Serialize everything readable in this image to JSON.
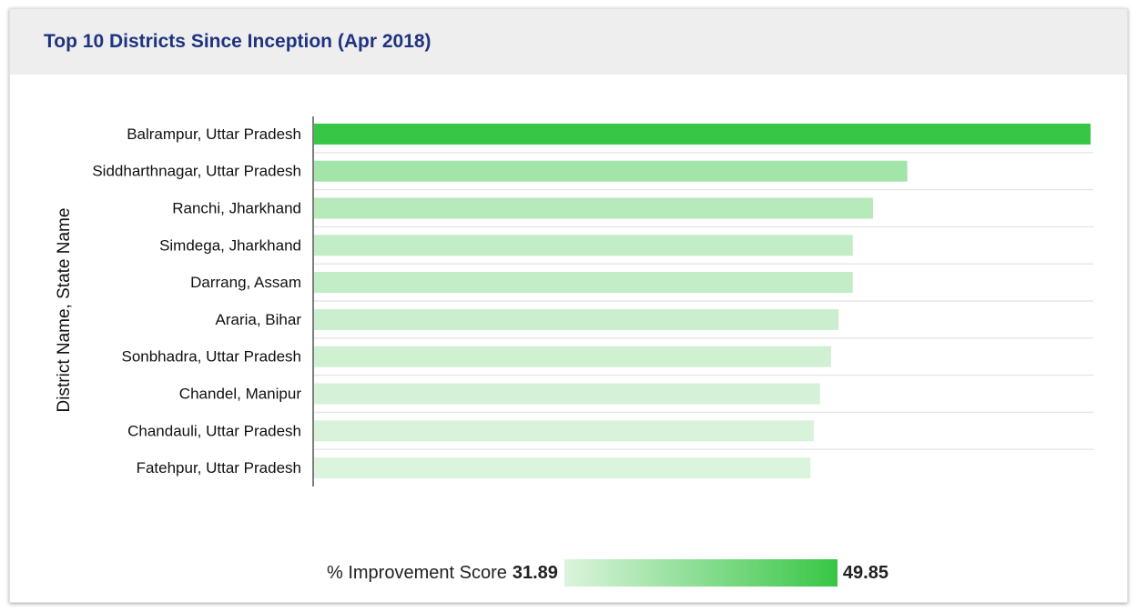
{
  "header": {
    "title": "Top 10 Districts Since Inception (Apr 2018)"
  },
  "legend": {
    "label": "% Improvement Score",
    "min_label": "31.89",
    "max_label": "49.85"
  },
  "colors": {
    "bar_max": "#38c646",
    "bar_min": "#dbf4dd",
    "title": "#1f3380",
    "header_bg": "#eeeeee",
    "gridline": "#e6e6e6",
    "axis": "#555555"
  },
  "chart_data": {
    "type": "bar",
    "orientation": "horizontal",
    "ylabel": "District Name, State Name",
    "xlabel": "",
    "categories": [
      "Balrampur, Uttar Pradesh",
      "Siddharthnagar, Uttar Pradesh",
      "Ranchi, Jharkhand",
      "Simdega, Jharkhand",
      "Darrang, Assam",
      "Araria, Bihar",
      "Sonbhadra, Uttar Pradesh",
      "Chandel, Manipur",
      "Chandauli, Uttar Pradesh",
      "Fatehpur, Uttar Pradesh"
    ],
    "values": [
      49.85,
      38.1,
      35.9,
      34.6,
      34.6,
      33.7,
      33.2,
      32.5,
      32.1,
      31.89
    ],
    "xlim": [
      0,
      50
    ],
    "color_scale": {
      "min": 31.89,
      "max": 49.85
    },
    "grid": true,
    "legend_position": "bottom"
  }
}
